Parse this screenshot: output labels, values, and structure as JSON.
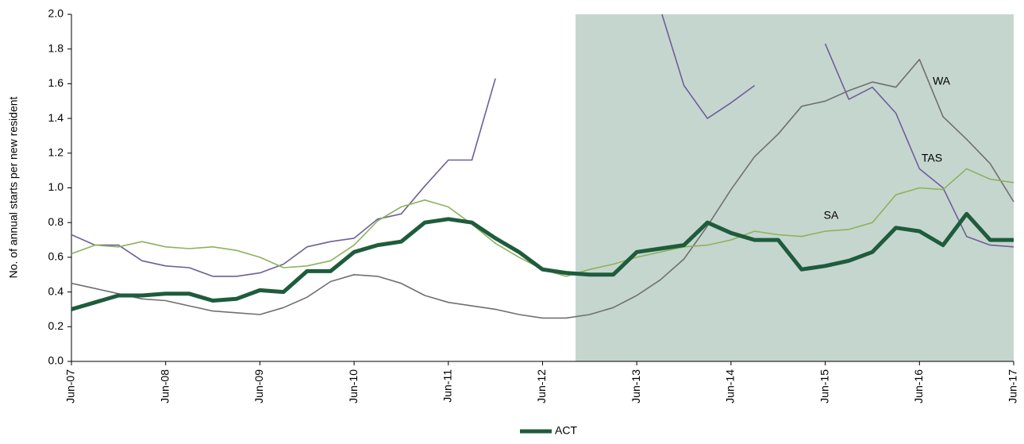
{
  "chart_data": {
    "type": "line",
    "y_label": "No. of annual starts  per new resident",
    "categories": [
      "Jun-07",
      null,
      null,
      null,
      "Jun-08",
      null,
      null,
      null,
      "Jun-09",
      null,
      null,
      null,
      "Jun-10",
      null,
      null,
      null,
      "Jun-11",
      null,
      null,
      null,
      "Jun-12",
      null,
      null,
      null,
      "Jun-13",
      null,
      null,
      null,
      "Jun-14",
      null,
      null,
      null,
      "Jun-15",
      null,
      null,
      null,
      "Jun-16",
      null,
      null,
      null,
      "Jun-17"
    ],
    "series": [
      {
        "name": "ACT",
        "color": "#1e5c3c",
        "width": 5,
        "legend": true,
        "values": [
          0.3,
          0.34,
          0.38,
          0.38,
          0.39,
          0.39,
          0.35,
          0.36,
          0.41,
          0.4,
          0.52,
          0.52,
          0.63,
          0.67,
          0.69,
          0.8,
          0.82,
          0.8,
          0.71,
          0.63,
          0.53,
          0.51,
          0.5,
          0.5,
          0.63,
          0.65,
          0.67,
          0.8,
          0.74,
          0.7,
          0.7,
          0.53,
          0.55,
          0.58,
          0.63,
          0.77,
          0.75,
          0.67,
          0.85,
          0.7,
          0.7
        ]
      },
      {
        "name": "SA",
        "color": "#8db35a",
        "width": 1.6,
        "legend": false,
        "values": [
          0.62,
          0.67,
          0.66,
          0.69,
          0.66,
          0.65,
          0.66,
          0.64,
          0.6,
          0.54,
          0.55,
          0.58,
          0.67,
          0.81,
          0.89,
          0.93,
          0.89,
          0.79,
          0.68,
          0.6,
          0.53,
          0.49,
          0.53,
          0.56,
          0.6,
          0.63,
          0.66,
          0.67,
          0.7,
          0.75,
          0.73,
          0.72,
          0.75,
          0.76,
          0.8,
          0.96,
          1.0,
          0.99,
          1.11,
          1.05,
          1.03
        ]
      },
      {
        "name": "WA",
        "color": "#707070",
        "width": 1.6,
        "legend": false,
        "values": [
          0.45,
          0.42,
          0.39,
          0.36,
          0.35,
          0.32,
          0.29,
          0.28,
          0.27,
          0.31,
          0.37,
          0.46,
          0.5,
          0.49,
          0.45,
          0.38,
          0.34,
          0.32,
          0.3,
          0.27,
          0.25,
          0.25,
          0.27,
          0.31,
          0.38,
          0.47,
          0.59,
          0.78,
          0.99,
          1.18,
          1.31,
          1.47,
          1.5,
          1.56,
          1.61,
          1.58,
          1.74,
          1.41,
          1.28,
          1.14,
          0.92
        ]
      },
      {
        "name": "TAS",
        "color": "#6f5f98",
        "width": 1.6,
        "legend": false,
        "values": [
          0.73,
          0.67,
          0.67,
          0.58,
          0.55,
          0.54,
          0.49,
          0.49,
          0.51,
          0.56,
          0.66,
          0.69,
          0.71,
          0.82,
          0.85,
          1.01,
          1.16,
          1.16,
          1.63,
          null,
          null,
          null,
          null,
          null,
          null,
          2.03,
          1.59,
          1.4,
          1.49,
          1.59,
          null,
          null,
          1.83,
          1.51,
          1.58,
          1.43,
          1.11,
          1.0,
          0.72,
          0.67,
          0.66
        ]
      }
    ],
    "shade_from": 21.4,
    "shade_color": "#c5d6cf",
    "ylim": [
      0,
      2
    ],
    "yticks": [
      {
        "value": 0,
        "label": "0.0"
      },
      0.2,
      0.4,
      0.6,
      0.8,
      {
        "value": 1,
        "label": "1.0"
      },
      1.2,
      1.4,
      1.6,
      1.8,
      {
        "value": 2,
        "label": "2.0"
      }
    ],
    "grid": false
  }
}
